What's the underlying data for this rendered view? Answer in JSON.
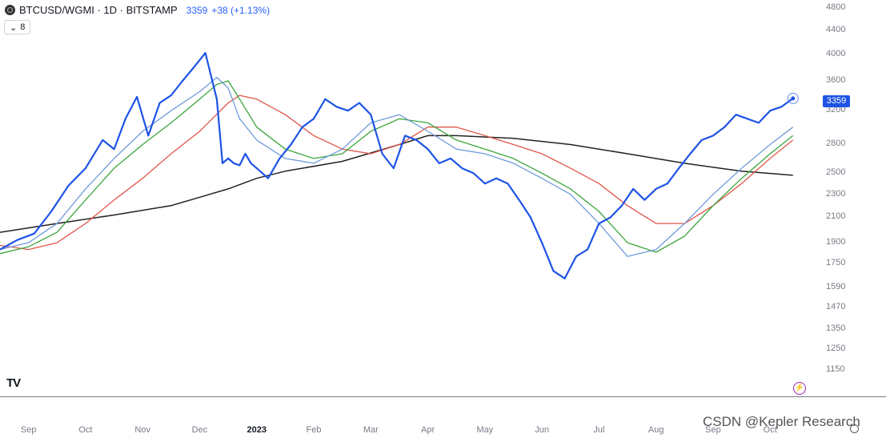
{
  "header": {
    "symbol": "BTCUSD/WGMI · 1D · BITSTAMP",
    "price": "3359",
    "change": "+38 (+1.13%)"
  },
  "indicator_toggle": {
    "chevron": "⌄",
    "count": "8"
  },
  "last_price_tag": "3359",
  "logo_text": "TV",
  "watermark": "CSDN @Kepler Research",
  "colors": {
    "price": "#1e53e5",
    "ma_fast": "#6f9bdb",
    "ma_mid": "#3ba53b",
    "ma_slow": "#e0574b",
    "ma_long": "#222222"
  },
  "chart_data": {
    "type": "line",
    "title": "BTCUSD/WGMI · 1D · BITSTAMP",
    "y_scale": "log",
    "ylim": [
      1100,
      4800
    ],
    "y_ticks": [
      "4800",
      "4400",
      "4000",
      "3600",
      "3200",
      "2800",
      "2500",
      "2300",
      "2100",
      "1900",
      "1750",
      "1590",
      "1470",
      "1350",
      "1250",
      "1150"
    ],
    "x_ticks": [
      "Sep",
      "Oct",
      "Nov",
      "Dec",
      "2023",
      "Feb",
      "Mar",
      "Apr",
      "May",
      "Jun",
      "Jul",
      "Aug",
      "Sep",
      "Oct"
    ],
    "x_tick_positions": [
      0.5,
      1.5,
      2.5,
      3.5,
      4.5,
      5.5,
      6.5,
      7.5,
      8.5,
      9.5,
      10.5,
      11.5,
      12.5,
      13.5
    ],
    "x_range": [
      0,
      14.1
    ],
    "series": [
      {
        "key": "price",
        "x": [
          0.0,
          0.3,
          0.6,
          0.9,
          1.2,
          1.5,
          1.8,
          2.0,
          2.2,
          2.4,
          2.6,
          2.8,
          3.0,
          3.2,
          3.4,
          3.6,
          3.8,
          3.9,
          4.0,
          4.1,
          4.2,
          4.3,
          4.4,
          4.5,
          4.7,
          4.9,
          5.1,
          5.3,
          5.5,
          5.7,
          5.9,
          6.1,
          6.3,
          6.5,
          6.7,
          6.9,
          7.1,
          7.3,
          7.5,
          7.7,
          7.9,
          8.1,
          8.3,
          8.5,
          8.7,
          8.9,
          9.1,
          9.3,
          9.5,
          9.7,
          9.9,
          10.1,
          10.3,
          10.5,
          10.7,
          10.9,
          11.1,
          11.3,
          11.5,
          11.7,
          11.9,
          12.1,
          12.3,
          12.5,
          12.7,
          12.9,
          13.1,
          13.3,
          13.5,
          13.7,
          13.9
        ],
        "values": [
          1850,
          1920,
          1970,
          2150,
          2380,
          2550,
          2850,
          2750,
          3100,
          3380,
          2900,
          3300,
          3400,
          3600,
          3800,
          4020,
          3350,
          2600,
          2650,
          2600,
          2580,
          2700,
          2600,
          2550,
          2450,
          2650,
          2800,
          3000,
          3100,
          3350,
          3250,
          3200,
          3300,
          3150,
          2700,
          2550,
          2900,
          2850,
          2750,
          2600,
          2650,
          2550,
          2500,
          2400,
          2450,
          2400,
          2250,
          2100,
          1900,
          1700,
          1650,
          1800,
          1850,
          2050,
          2100,
          2200,
          2350,
          2250,
          2350,
          2400,
          2550,
          2700,
          2850,
          2900,
          3000,
          3150,
          3100,
          3050,
          3200,
          3250,
          3359
        ]
      },
      {
        "key": "ma_fast",
        "x": [
          0.0,
          0.5,
          1.0,
          1.5,
          2.0,
          2.5,
          3.0,
          3.5,
          3.8,
          4.0,
          4.2,
          4.5,
          5.0,
          5.5,
          6.0,
          6.5,
          7.0,
          7.5,
          8.0,
          8.5,
          9.0,
          9.5,
          10.0,
          10.5,
          11.0,
          11.5,
          12.0,
          12.5,
          13.0,
          13.5,
          13.9
        ],
        "values": [
          1850,
          1900,
          2050,
          2350,
          2650,
          2950,
          3200,
          3450,
          3650,
          3500,
          3100,
          2850,
          2650,
          2600,
          2750,
          3050,
          3150,
          2950,
          2750,
          2700,
          2600,
          2450,
          2300,
          2050,
          1800,
          1850,
          2050,
          2300,
          2550,
          2800,
          3000
        ]
      },
      {
        "key": "ma_mid",
        "x": [
          0.0,
          0.5,
          1.0,
          1.5,
          2.0,
          2.5,
          3.0,
          3.5,
          3.8,
          4.0,
          4.2,
          4.5,
          5.0,
          5.5,
          6.0,
          6.5,
          7.0,
          7.5,
          8.0,
          8.5,
          9.0,
          9.5,
          10.0,
          10.5,
          11.0,
          11.5,
          12.0,
          12.5,
          13.0,
          13.5,
          13.9
        ],
        "values": [
          1820,
          1870,
          1980,
          2250,
          2550,
          2800,
          3050,
          3350,
          3550,
          3600,
          3350,
          3000,
          2750,
          2650,
          2700,
          2950,
          3100,
          3050,
          2850,
          2750,
          2650,
          2500,
          2350,
          2150,
          1900,
          1830,
          1950,
          2200,
          2450,
          2700,
          2900
        ]
      },
      {
        "key": "ma_slow",
        "x": [
          0.0,
          0.5,
          1.0,
          1.5,
          2.0,
          2.5,
          3.0,
          3.5,
          4.0,
          4.2,
          4.5,
          5.0,
          5.5,
          6.0,
          6.5,
          7.0,
          7.5,
          8.0,
          8.5,
          9.0,
          9.5,
          10.0,
          10.5,
          11.0,
          11.5,
          12.0,
          12.5,
          13.0,
          13.5,
          13.9
        ],
        "values": [
          1880,
          1850,
          1900,
          2050,
          2250,
          2450,
          2700,
          2950,
          3300,
          3400,
          3350,
          3150,
          2900,
          2750,
          2700,
          2800,
          3000,
          3000,
          2900,
          2800,
          2700,
          2550,
          2400,
          2200,
          2050,
          2050,
          2200,
          2400,
          2650,
          2850
        ]
      },
      {
        "key": "ma_long",
        "x": [
          0.0,
          1.0,
          2.0,
          3.0,
          4.0,
          4.5,
          5.0,
          6.0,
          7.0,
          7.5,
          8.0,
          9.0,
          10.0,
          11.0,
          12.0,
          13.0,
          13.9
        ],
        "values": [
          1980,
          2050,
          2120,
          2200,
          2350,
          2450,
          2520,
          2620,
          2800,
          2900,
          2900,
          2870,
          2800,
          2700,
          2600,
          2520,
          2480
        ]
      }
    ]
  }
}
